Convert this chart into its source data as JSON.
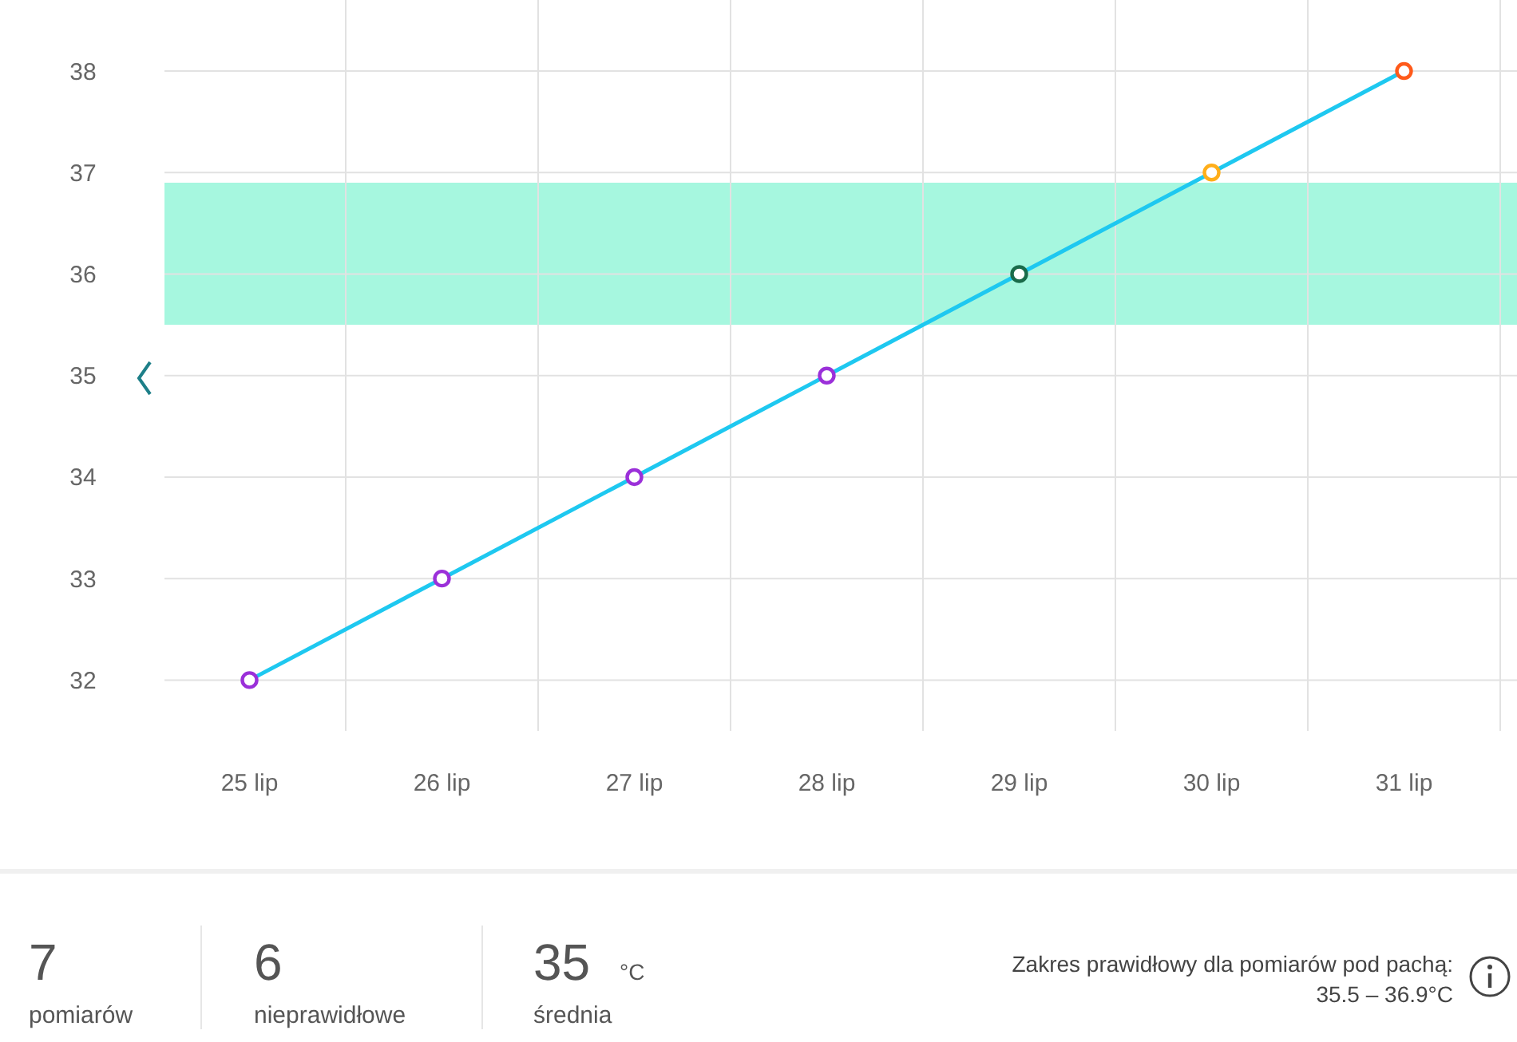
{
  "chart_data": {
    "type": "line",
    "categories": [
      "25 lip",
      "26 lip",
      "27 lip",
      "28 lip",
      "29 lip",
      "30 lip",
      "31 lip"
    ],
    "series": [
      {
        "color": "#1ec8f0",
        "colors": [
          "#9b30d9",
          "#9b30d9",
          "#9b30d9",
          "#9b30d9",
          "#1a6b4a",
          "#ffae1a",
          "#ff5a1a"
        ],
        "values": [
          32,
          33,
          34,
          35,
          36,
          37,
          38
        ]
      }
    ],
    "ylim": [
      31.5,
      38.7
    ],
    "yticks": [
      32,
      33,
      34,
      35,
      36,
      37,
      38
    ],
    "grid": true,
    "marker": "circle",
    "line_style": "solid",
    "bands": [
      {
        "axis": "y",
        "from": 35.5,
        "to": 36.9,
        "color": "#a6f7df"
      }
    ],
    "annotations": [
      "7",
      "pomiarów",
      "6",
      "nieprawidłowe",
      "35",
      "°C",
      "średnia",
      "Zakres prawidłowy dla pomiarów pod pachą:",
      "35.5 – 36.9°C"
    ]
  }
}
